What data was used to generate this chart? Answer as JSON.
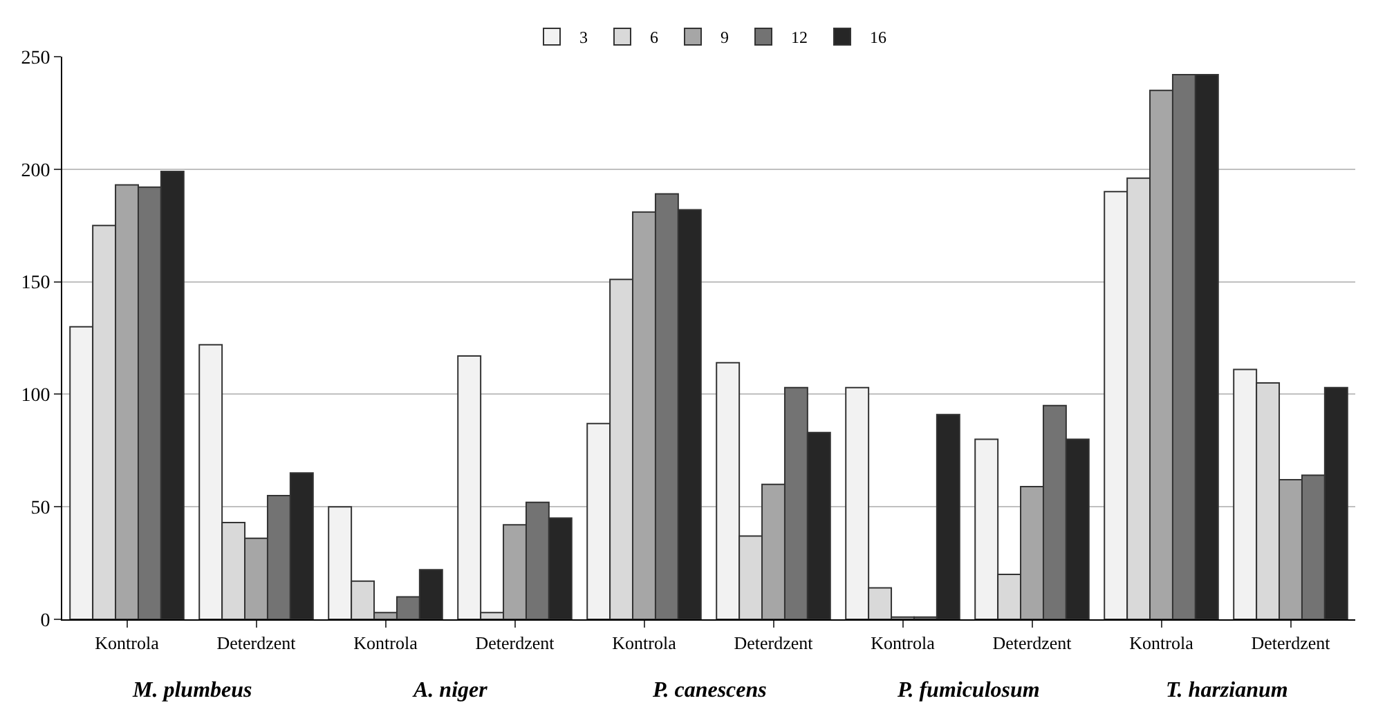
{
  "chart_data": {
    "type": "bar",
    "categories": [
      "Kontrola",
      "Deterdzent",
      "Kontrola",
      "Deterdzent",
      "Kontrola",
      "Deterdzent",
      "Kontrola",
      "Deterdzent",
      "Kontrola",
      "Deterdzent"
    ],
    "series": [
      {
        "name": "3",
        "color": "#f2f2f2",
        "values": [
          130,
          122,
          50,
          117,
          87,
          114,
          103,
          80,
          190,
          111
        ]
      },
      {
        "name": "6",
        "color": "#d9d9d9",
        "values": [
          175,
          43,
          17,
          3,
          151,
          37,
          14,
          20,
          196,
          105
        ]
      },
      {
        "name": "9",
        "color": "#a6a6a6",
        "values": [
          193,
          36,
          3,
          42,
          181,
          60,
          1,
          59,
          235,
          62
        ]
      },
      {
        "name": "12",
        "color": "#737373",
        "values": [
          192,
          55,
          10,
          52,
          189,
          103,
          1,
          95,
          242,
          64
        ]
      },
      {
        "name": "16",
        "color": "#262626",
        "values": [
          199,
          65,
          22,
          45,
          182,
          83,
          91,
          80,
          242,
          103
        ]
      }
    ],
    "annotations": [
      "M. plumbeus",
      "A. niger",
      "P. canescens",
      "P. fumiculosum",
      "T. harzianum"
    ],
    "ylim": [
      0,
      250
    ],
    "yticks": [
      0,
      50,
      100,
      150,
      200,
      250
    ],
    "grid": "y",
    "legend": "top"
  }
}
